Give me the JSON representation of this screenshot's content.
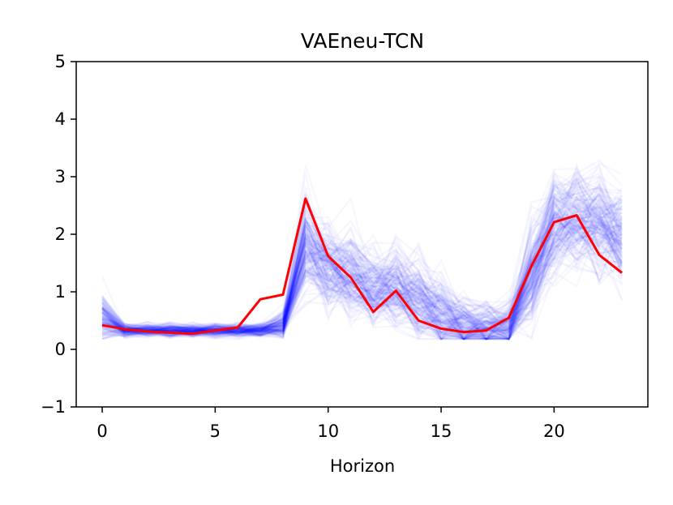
{
  "chart_data": {
    "type": "line",
    "title": "VAEneu-TCN",
    "xlabel": "Horizon",
    "ylabel": "",
    "xlim": [
      -1.15,
      24.15
    ],
    "ylim": [
      -1,
      5
    ],
    "x_ticks": [
      0,
      5,
      10,
      15,
      20
    ],
    "y_ticks": [
      -1,
      0,
      1,
      2,
      3,
      4,
      5
    ],
    "grid": false,
    "legend": "none",
    "x": [
      0,
      1,
      2,
      3,
      4,
      5,
      6,
      7,
      8,
      9,
      10,
      11,
      12,
      13,
      14,
      15,
      16,
      17,
      18,
      19,
      20,
      21,
      22,
      23
    ],
    "series": [
      {
        "role": "ground-truth",
        "color": "#ff0000",
        "values": [
          0.42,
          0.35,
          0.31,
          0.29,
          0.27,
          0.33,
          0.38,
          0.87,
          0.95,
          2.62,
          1.62,
          1.25,
          0.65,
          1.02,
          0.5,
          0.36,
          0.3,
          0.33,
          0.55,
          1.45,
          2.21,
          2.33,
          1.64,
          1.33
        ]
      }
    ],
    "sample_band": {
      "role": "generated-samples",
      "color": "#0000ff",
      "n_samples": 180,
      "center": [
        0.55,
        0.33,
        0.33,
        0.33,
        0.33,
        0.33,
        0.33,
        0.33,
        0.42,
        1.85,
        1.45,
        1.3,
        1.05,
        1.1,
        0.85,
        0.6,
        0.4,
        0.38,
        0.4,
        1.3,
        2.2,
        2.3,
        2.2,
        2.0
      ],
      "spread": [
        0.45,
        0.12,
        0.12,
        0.12,
        0.12,
        0.12,
        0.12,
        0.12,
        0.25,
        0.9,
        0.85,
        0.8,
        0.75,
        0.75,
        0.75,
        0.7,
        0.55,
        0.5,
        0.5,
        0.85,
        0.95,
        1.0,
        1.0,
        0.95
      ]
    }
  }
}
